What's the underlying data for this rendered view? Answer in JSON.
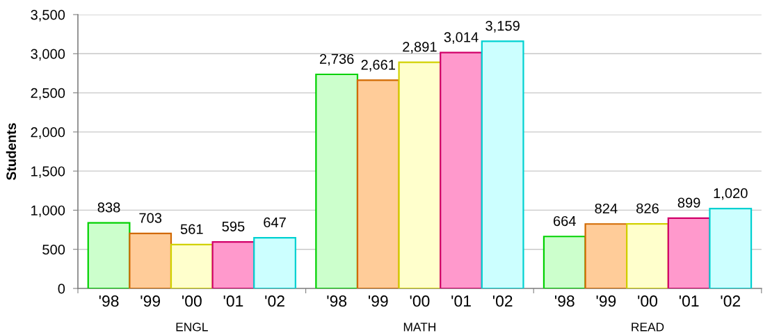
{
  "chart_data": {
    "type": "bar",
    "ylabel": "Students",
    "categories": [
      "ENGL",
      "MATH",
      "READ"
    ],
    "series": [
      {
        "name": "'98",
        "color": "#ccffcc",
        "values": [
          838,
          2736,
          664
        ],
        "value_labels": [
          "838",
          "2,736",
          "664"
        ]
      },
      {
        "name": "'99",
        "color": "#ffcc99",
        "values": [
          703,
          2661,
          824
        ],
        "value_labels": [
          "703",
          "2,661",
          "824"
        ]
      },
      {
        "name": "'00",
        "color": "#ffffcc",
        "values": [
          561,
          2891,
          826
        ],
        "value_labels": [
          "561",
          "2,891",
          "826"
        ]
      },
      {
        "name": "'01",
        "color": "#ff99cc",
        "values": [
          595,
          3014,
          899
        ],
        "value_labels": [
          "595",
          "3,014",
          "899"
        ]
      },
      {
        "name": "'02",
        "color": "#ccffff",
        "values": [
          647,
          3159,
          1020
        ],
        "value_labels": [
          "647",
          "3,159",
          "1,020"
        ]
      }
    ],
    "ylim": [
      0,
      3500
    ],
    "yticks": [
      0,
      500,
      {
        "value": 1000,
        "label": "1,000"
      },
      {
        "value": 1500,
        "label": "1,500"
      },
      {
        "value": 2000,
        "label": "2,000"
      },
      {
        "value": 2500,
        "label": "2,500"
      },
      {
        "value": 3000,
        "label": "3,000"
      },
      {
        "value": 3500,
        "label": "3,500"
      }
    ],
    "grid": "y"
  }
}
